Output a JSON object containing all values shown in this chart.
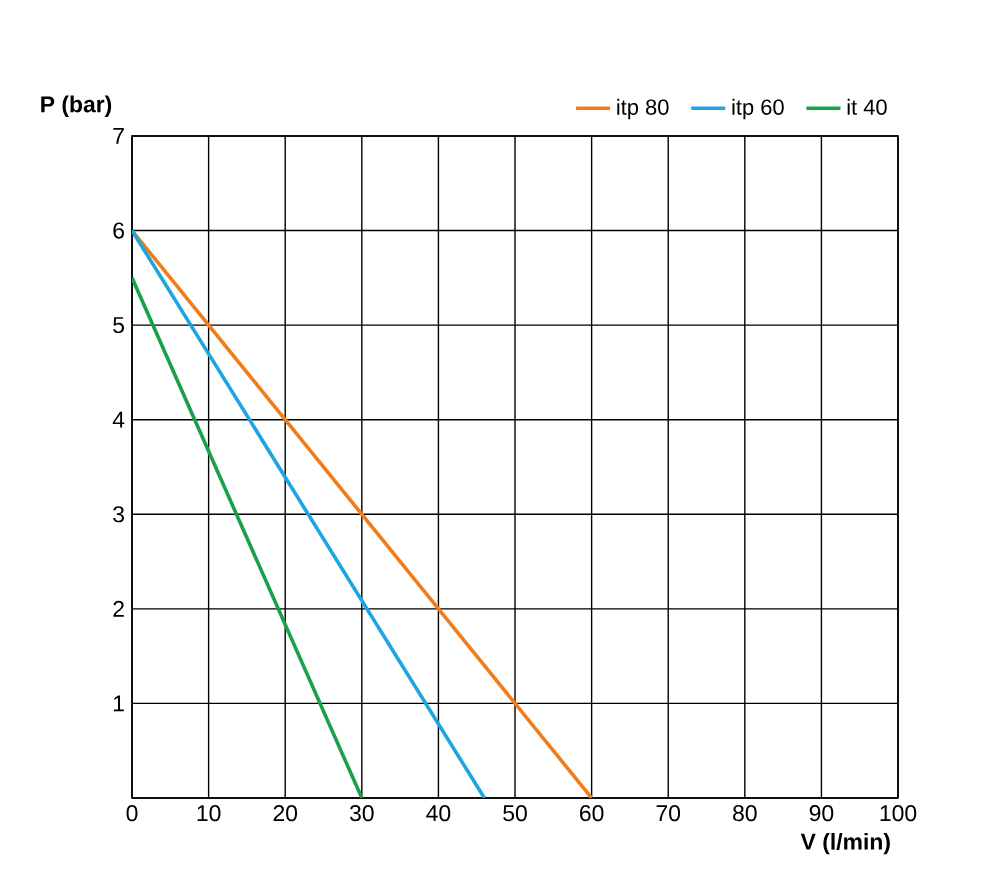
{
  "chart_data": {
    "type": "line",
    "xlabel": "V (l/min)",
    "ylabel": "P (bar)",
    "xlim": [
      0,
      100
    ],
    "ylim": [
      0,
      7
    ],
    "xticks": [
      0,
      10,
      20,
      30,
      40,
      50,
      60,
      70,
      80,
      90,
      100
    ],
    "yticks": [
      {
        "value": 0,
        "label": null
      },
      1,
      2,
      3,
      4,
      5,
      6,
      7
    ],
    "grid": true,
    "legend": "top right",
    "marker": "none",
    "line_style": "solid",
    "series": [
      {
        "name": "itp 80",
        "color": "#f07d1a",
        "x": [
          0,
          60
        ],
        "values": [
          6,
          0
        ]
      },
      {
        "name": "itp 60",
        "color": "#1ea5e0",
        "x": [
          0,
          46
        ],
        "values": [
          6,
          0
        ]
      },
      {
        "name": "it 40",
        "color": "#18a04a",
        "x": [
          0,
          30
        ],
        "values": [
          5.5,
          0
        ]
      }
    ]
  }
}
